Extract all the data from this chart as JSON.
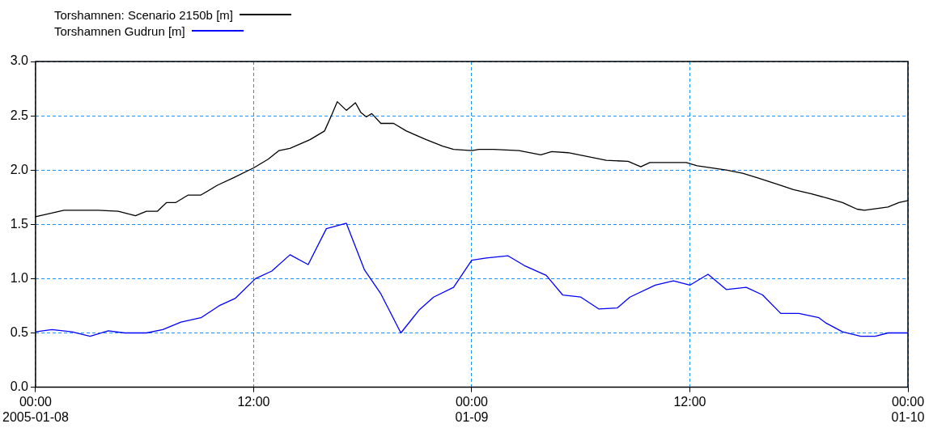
{
  "chart_data": {
    "type": "line",
    "x": [
      "2005-01-08T00:00",
      "2005-01-08T01:34",
      "2005-01-08T03:27",
      "2005-01-08T04:33",
      "2005-01-08T05:30",
      "2005-01-08T06:06",
      "2005-01-08T06:42",
      "2005-01-08T07:12",
      "2005-01-08T07:42",
      "2005-01-08T08:24",
      "2005-01-08T09:06",
      "2005-01-08T10:00",
      "2005-01-08T10:54",
      "2005-01-08T12:00",
      "2005-01-08T12:48",
      "2005-01-08T13:24",
      "2005-01-08T14:00",
      "2005-01-08T15:06",
      "2005-01-08T15:54",
      "2005-01-08T16:18",
      "2005-01-08T16:36",
      "2005-01-08T17:06",
      "2005-01-08T17:36",
      "2005-01-08T17:54",
      "2005-01-08T18:12",
      "2005-01-08T18:30",
      "2005-01-08T19:00",
      "2005-01-08T19:42",
      "2005-01-08T20:24",
      "2005-01-08T21:30",
      "2005-01-08T22:24",
      "2005-01-08T23:00",
      "2005-01-09T00:00",
      "2005-01-09T00:24",
      "2005-01-09T01:12",
      "2005-01-09T02:36",
      "2005-01-09T03:48",
      "2005-01-09T04:24",
      "2005-01-09T05:18",
      "2005-01-09T07:24",
      "2005-01-09T08:36",
      "2005-01-09T09:18",
      "2005-01-09T09:48",
      "2005-01-09T11:48",
      "2005-01-09T12:24",
      "2005-01-09T14:00",
      "2005-01-09T14:54",
      "2005-01-09T15:42",
      "2005-01-09T16:48",
      "2005-01-09T17:42",
      "2005-01-09T18:42",
      "2005-01-09T19:36",
      "2005-01-09T20:24",
      "2005-01-09T21:12",
      "2005-01-09T21:36",
      "2005-01-09T22:54",
      "2005-01-09T23:30",
      "2005-01-10T00:00"
    ],
    "series": [
      {
        "name": "Torshamnen: Scenario 2150b [m]",
        "color": "#000000",
        "values": [
          1.57,
          1.63,
          1.63,
          1.62,
          1.58,
          1.62,
          1.62,
          1.7,
          1.7,
          1.77,
          1.77,
          1.86,
          1.93,
          2.02,
          2.1,
          2.18,
          2.2,
          2.28,
          2.36,
          2.51,
          2.63,
          2.55,
          2.62,
          2.53,
          2.49,
          2.52,
          2.43,
          2.43,
          2.36,
          2.28,
          2.22,
          2.19,
          2.18,
          2.19,
          2.19,
          2.18,
          2.14,
          2.17,
          2.16,
          2.09,
          2.08,
          2.03,
          2.07,
          2.07,
          2.04,
          2.0,
          1.97,
          1.93,
          1.87,
          1.82,
          1.78,
          1.74,
          1.7,
          1.64,
          1.63,
          1.66,
          1.7,
          1.72
        ]
      },
      {
        "name": "Torshamnen Gudrun [m]",
        "color": "#0000ff",
        "x": [
          "2005-01-08T00:00",
          "2005-01-08T00:54",
          "2005-01-08T02:00",
          "2005-01-08T03:00",
          "2005-01-08T04:00",
          "2005-01-08T04:54",
          "2005-01-08T06:06",
          "2005-01-08T07:00",
          "2005-01-08T08:00",
          "2005-01-08T09:06",
          "2005-01-08T10:06",
          "2005-01-08T11:00",
          "2005-01-08T12:06",
          "2005-01-08T13:00",
          "2005-01-08T14:00",
          "2005-01-08T15:00",
          "2005-01-08T16:00",
          "2005-01-08T17:06",
          "2005-01-08T18:06",
          "2005-01-08T19:00",
          "2005-01-08T20:06",
          "2005-01-08T21:06",
          "2005-01-08T21:54",
          "2005-01-08T23:00",
          "2005-01-09T00:00",
          "2005-01-09T00:48",
          "2005-01-09T02:00",
          "2005-01-09T02:54",
          "2005-01-09T04:06",
          "2005-01-09T05:00",
          "2005-01-09T06:00",
          "2005-01-09T07:00",
          "2005-01-09T08:00",
          "2005-01-09T08:42",
          "2005-01-09T10:06",
          "2005-01-09T11:06",
          "2005-01-09T12:00",
          "2005-01-09T13:00",
          "2005-01-09T14:00",
          "2005-01-09T15:06",
          "2005-01-09T16:00",
          "2005-01-09T17:00",
          "2005-01-09T18:00",
          "2005-01-09T19:06",
          "2005-01-09T19:30",
          "2005-01-09T20:24",
          "2005-01-09T21:24",
          "2005-01-09T22:12",
          "2005-01-09T22:54",
          "2005-01-10T00:00"
        ],
        "values": [
          0.51,
          0.53,
          0.51,
          0.47,
          0.52,
          0.5,
          0.5,
          0.53,
          0.6,
          0.64,
          0.75,
          0.82,
          1.0,
          1.07,
          1.22,
          1.13,
          1.46,
          1.51,
          1.08,
          0.86,
          0.5,
          0.71,
          0.83,
          0.92,
          1.17,
          1.19,
          1.21,
          1.12,
          1.03,
          0.85,
          0.83,
          0.72,
          0.73,
          0.83,
          0.94,
          0.98,
          0.94,
          1.04,
          0.9,
          0.92,
          0.85,
          0.68,
          0.68,
          0.64,
          0.59,
          0.51,
          0.47,
          0.47,
          0.5,
          0.5
        ]
      }
    ],
    "xlim": [
      "2005-01-08T00:00",
      "2005-01-10T00:00"
    ],
    "xticks": [
      {
        "value": "2005-01-08T00:00",
        "label": "00:00\n2005-01-08"
      },
      {
        "value": "2005-01-08T12:00",
        "label": "12:00"
      },
      {
        "value": "2005-01-09T00:00",
        "label": "00:00\n01-09"
      },
      {
        "value": "2005-01-09T12:00",
        "label": "12:00"
      },
      {
        "value": "2005-01-10T00:00",
        "label": "00:00\n01-10"
      }
    ],
    "ylim": [
      0,
      3
    ],
    "yticks": [
      {
        "value": 0,
        "label": "0.0"
      },
      {
        "value": 0.5,
        "label": "0.5"
      },
      {
        "value": 1,
        "label": "1.0"
      },
      {
        "value": 1.5,
        "label": "1.5"
      },
      {
        "value": 2,
        "label": "2.0"
      },
      {
        "value": 2.5,
        "label": "2.5"
      },
      {
        "value": 3,
        "label": "3.0"
      }
    ],
    "grid": true,
    "legend": "top left",
    "marker": "none",
    "line_style": "solid"
  }
}
